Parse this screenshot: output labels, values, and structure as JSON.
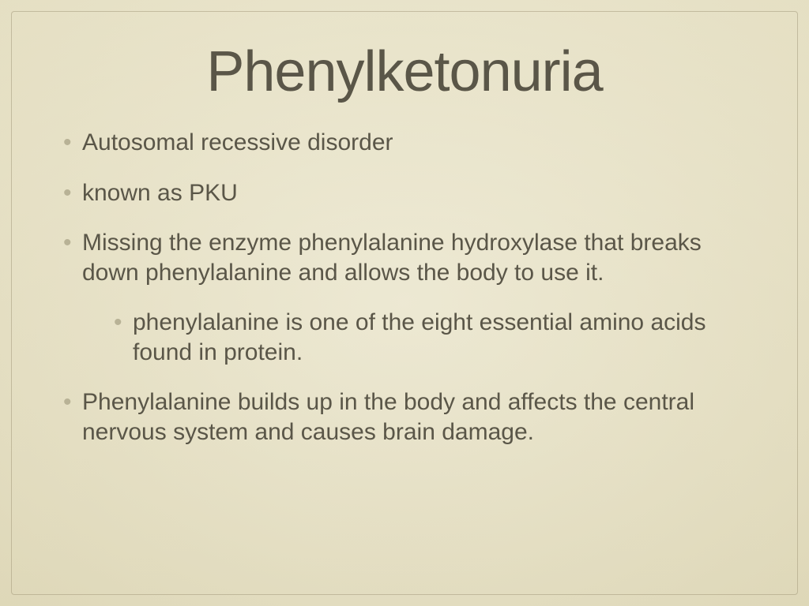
{
  "slide": {
    "title": "Phenylketonuria",
    "bullets": {
      "b1": "Autosomal recessive disorder",
      "b2": "known as PKU",
      "b3": "Missing the enzyme phenylalanine hydroxylase that breaks down phenylalanine and allows the body to use it.",
      "b3_sub1": "phenylalanine is one of the eight essential amino acids found in protein.",
      "b4": "Phenylalanine builds up in the body and affects the central nervous system and causes brain damage."
    }
  },
  "style": {
    "background_color": "#e8e3c8",
    "text_color": "#5a5648",
    "bullet_color": "#b8b296",
    "border_color": "rgba(160,150,120,0.5)",
    "title_fontsize": 72,
    "body_fontsize": 30,
    "font_family": "Arial"
  }
}
